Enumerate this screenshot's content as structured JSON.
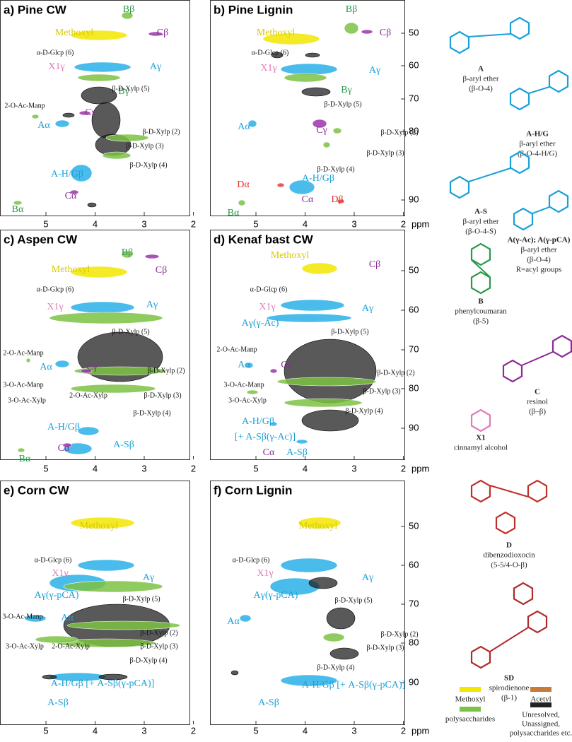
{
  "panels": [
    {
      "title": "a) Pine CW",
      "xticks": [
        "5",
        "4",
        "3",
        "2"
      ],
      "labels": [
        "Methoxyl",
        "Bβ",
        "Cβ",
        "α-D-Glcp (6)",
        "X1γ",
        "Aγ",
        "Bγ",
        "β-D-Xylp (5)",
        "2-O-Ac-Manp",
        "Cγ",
        "Aα",
        "β-D-Xylp (2)",
        "β-D-Xylp (3)",
        "β-D-Xylp (4)",
        "A-H/Gβ",
        "Cα",
        "Bα"
      ]
    },
    {
      "title": "b) Pine Lignin",
      "xticks": [
        "5",
        "4",
        "3",
        "2"
      ],
      "x_unit": "ppm",
      "yticks": [
        "50",
        "60",
        "70",
        "80",
        "90"
      ],
      "labels": [
        "Methoxyl",
        "Bβ",
        "Cβ",
        "α-D-Glcp (6)",
        "X1γ",
        "Aγ",
        "Bγ",
        "β-D-Xylp (5)",
        "Aα",
        "Cγ",
        "β-D-Xylp (2)",
        "β-D-Xylp (3)",
        "β-D-Xylp (4)",
        "Dα",
        "A-H/Gβ",
        "Cα",
        "Dβ",
        "Bα"
      ]
    },
    {
      "title": "c) Aspen CW",
      "xticks": [
        "5",
        "4",
        "3",
        "2"
      ],
      "labels": [
        "Methoxyl",
        "Bβ",
        "Cβ",
        "α-D-Glcp (6)",
        "X1γ",
        "Aγ",
        "β-D-Xylp (5)",
        "2-O-Ac-Manp",
        "Aα",
        "Cγ",
        "3-O-Ac-Manp",
        "2-O-Ac-Xylp",
        "β-D-Xylp (2)",
        "3-O-Ac-Xylp",
        "β-D-Xylp (3)",
        "β-D-Xylp (4)",
        "A-H/Gβ",
        "Cα",
        "A-Sβ",
        "Bα"
      ]
    },
    {
      "title": "d) Kenaf bast CW",
      "xticks": [
        "5",
        "4",
        "3",
        "2"
      ],
      "x_unit": "ppm",
      "yticks": [
        "50",
        "60",
        "70",
        "80",
        "90"
      ],
      "labels": [
        "Methoxyl",
        "Cβ",
        "α-D-Glcp (6)",
        "X1γ",
        "Aγ",
        "Aγ(γ-Ac)",
        "β-D-Xylp (5)",
        "2-O-Ac-Manp",
        "Aα",
        "Cγ",
        "β-D-Xylp (2)",
        "3-O-Ac-Manp",
        "β-D-Xylp (3)",
        "3-O-Ac-Xylp",
        "β-D-Xylp (4)",
        "A-H/Gβ",
        "[+ A-Sβ(γ-Ac)]",
        "Cα",
        "A-Sβ"
      ]
    },
    {
      "title": "e) Corn CW",
      "xticks": [
        "5",
        "4",
        "3",
        "2"
      ],
      "labels": [
        "Methoxyl",
        "α-D-Glcp (6)",
        "X1γ",
        "Aγ",
        "Aγ(γ-pCA)",
        "β-D-Xylp (5)",
        "3-O-Ac-Manp",
        "Aα",
        "3-O-Ac-Xylp",
        "2-O-Ac-Xylp",
        "β-D-Xylp (2)",
        "β-D-Xylp (3)",
        "β-D-Xylp (4)",
        "A-H/Gβ [+ A-Sβ(γ-pCA)]",
        "A-Sβ"
      ]
    },
    {
      "title": "f) Corn Lignin",
      "xticks": [
        "5",
        "4",
        "3",
        "2"
      ],
      "x_unit": "ppm",
      "yticks": [
        "50",
        "60",
        "70",
        "80",
        "90"
      ],
      "labels": [
        "Methoxyl",
        "α-D-Glcp (6)",
        "X1γ",
        "Aγ",
        "Aγ(γ-pCA)",
        "β-D-Xylp (5)",
        "Aα",
        "β-D-Xylp (2)",
        "β-D-Xylp (3)",
        "β-D-Xylp (4)",
        "A-H/Gβ [+ A-Sβ(γ-pCA)]",
        "A-Sβ"
      ]
    }
  ],
  "structures": [
    {
      "name": "A",
      "lines": [
        "β-aryl ether",
        "(β-O-4)"
      ]
    },
    {
      "name": "A-H/G",
      "lines": [
        "β-aryl ether",
        "(β-O-4-H/G)"
      ]
    },
    {
      "name": "A-S",
      "lines": [
        "β-aryl ether",
        "(β-O-4-S)"
      ]
    },
    {
      "name": "A(γ-Ac); A(γ-pCA)",
      "lines": [
        "β-aryl ether",
        "(β-O-4)",
        "R=acyl groups"
      ]
    },
    {
      "name": "B",
      "lines": [
        "phenylcoumaran",
        "(β-5)"
      ]
    },
    {
      "name": "C",
      "lines": [
        "resinol",
        "(β–β)"
      ]
    },
    {
      "name": "X1",
      "lines": [
        "cinnamyl alcohol"
      ]
    },
    {
      "name": "D",
      "lines": [
        "dibenzodioxocin",
        "(5-5/4-O-β)"
      ]
    },
    {
      "name": "SD",
      "lines": [
        "spirodienone",
        "(β-1)"
      ]
    }
  ],
  "key": [
    "Methoxyl",
    "Acetyl",
    "polysaccharides",
    [
      "Unresolved,",
      "Unassigned,",
      "polysaccharides etc."
    ]
  ]
}
